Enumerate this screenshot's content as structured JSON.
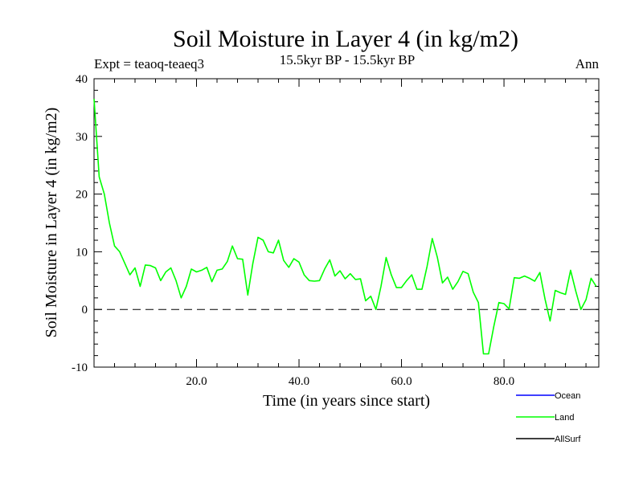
{
  "chart_data": {
    "type": "line",
    "title": "Soil Moisture in Layer 4 (in kg/m2)",
    "subtitle_left": "Expt = teaoq-teaeq3",
    "subtitle_center": "15.5kyr BP - 15.5kyr BP",
    "subtitle_right": "Ann",
    "xlabel": "Time (in years since start)",
    "ylabel": "Soil Moisture in Layer 4 (in kg/m2)",
    "xlim": [
      0,
      98.5
    ],
    "ylim": [
      -10,
      40
    ],
    "x_ticks": [
      20,
      40,
      60,
      80
    ],
    "x_tick_labels": [
      "20.0",
      "40.0",
      "60.0",
      "80.0"
    ],
    "y_ticks": [
      -10,
      0,
      10,
      20,
      30,
      40
    ],
    "y_tick_labels": [
      "-10",
      "0",
      "10",
      "20",
      "30",
      "40"
    ],
    "reference_line": {
      "y": 0,
      "style": "dashed"
    },
    "legend": [
      {
        "name": "Ocean",
        "color": "#0000ff"
      },
      {
        "name": "Land",
        "color": "#00ff00"
      },
      {
        "name": "AllSurf",
        "color": "#000000"
      }
    ],
    "series": [
      {
        "name": "Land",
        "color": "#00ff00",
        "x": [
          0,
          1,
          2,
          3,
          4,
          5,
          6,
          7,
          8,
          9,
          10,
          11,
          12,
          13,
          14,
          15,
          16,
          17,
          18,
          19,
          20,
          21,
          22,
          23,
          24,
          25,
          26,
          27,
          28,
          29,
          30,
          31,
          32,
          33,
          34,
          35,
          36,
          37,
          38,
          39,
          40,
          41,
          42,
          43,
          44,
          45,
          46,
          47,
          48,
          49,
          50,
          51,
          52,
          53,
          54,
          55,
          56,
          57,
          58,
          59,
          60,
          61,
          62,
          63,
          64,
          65,
          66,
          67,
          68,
          69,
          70,
          71,
          72,
          73,
          74,
          75,
          76,
          77,
          78,
          79,
          80,
          81,
          82,
          83,
          84,
          85,
          86,
          87,
          88,
          89,
          90,
          91,
          92,
          93,
          94,
          95,
          96,
          97,
          98
        ],
        "values": [
          36.5,
          23,
          20,
          15,
          11,
          10,
          8,
          6,
          7.2,
          4,
          7.7,
          7.6,
          7.2,
          5,
          6.5,
          7.2,
          5,
          2,
          4,
          7,
          6.5,
          6.8,
          7.3,
          4.8,
          6.8,
          7,
          8.3,
          11,
          8.8,
          8.7,
          2.5,
          8,
          12.5,
          12,
          10,
          9.8,
          12,
          8.5,
          7.3,
          8.8,
          8.2,
          6,
          5,
          4.9,
          5,
          7,
          8.6,
          5.8,
          6.7,
          5.3,
          6.2,
          5.2,
          5.3,
          1.5,
          2.3,
          0,
          4,
          9,
          6,
          3.8,
          3.8,
          5,
          6,
          3.5,
          3.5,
          7.5,
          12.3,
          9,
          4.6,
          5.6,
          3.5,
          4.8,
          6.6,
          6.2,
          3,
          1.2,
          -7.7,
          -7.7,
          -3,
          1.2,
          1,
          0.1,
          5.5,
          5.4,
          5.8,
          5.4,
          4.9,
          6.4,
          1.8,
          -2,
          3.3,
          2.9,
          2.6,
          6.8,
          3.2,
          0,
          1.7,
          5.4,
          4
        ]
      }
    ]
  }
}
